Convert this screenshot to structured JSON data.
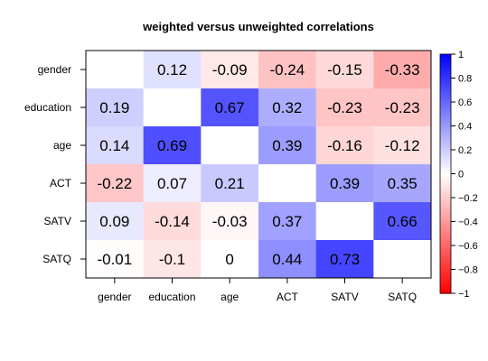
{
  "chart_data": {
    "type": "heatmap",
    "title": "weighted versus unweighted correlations",
    "rows": [
      "gender",
      "education",
      "age",
      "ACT",
      "SATV",
      "SATQ"
    ],
    "columns": [
      "gender",
      "education",
      "age",
      "ACT",
      "SATV",
      "SATQ"
    ],
    "values": [
      [
        null,
        0.12,
        -0.09,
        -0.24,
        -0.15,
        -0.33
      ],
      [
        0.19,
        null,
        0.67,
        0.32,
        -0.23,
        -0.23
      ],
      [
        0.14,
        0.69,
        null,
        0.39,
        -0.16,
        -0.12
      ],
      [
        -0.22,
        0.07,
        0.21,
        null,
        0.39,
        0.35
      ],
      [
        0.09,
        -0.14,
        -0.03,
        0.37,
        null,
        0.66
      ],
      [
        -0.01,
        -0.1,
        0,
        0.44,
        0.73,
        null
      ]
    ],
    "labels": [
      [
        "",
        "0.12",
        "-0.09",
        "-0.24",
        "-0.15",
        "-0.33"
      ],
      [
        "0.19",
        "",
        "0.67",
        "0.32",
        "-0.23",
        "-0.23"
      ],
      [
        "0.14",
        "0.69",
        "",
        "0.39",
        "-0.16",
        "-0.12"
      ],
      [
        "-0.22",
        "0.07",
        "0.21",
        "",
        "0.39",
        "0.35"
      ],
      [
        "0.09",
        "-0.14",
        "-0.03",
        "0.37",
        "",
        "0.66"
      ],
      [
        "-0.01",
        "-0.1",
        "0",
        "0.44",
        "0.73",
        ""
      ]
    ],
    "color_scale": {
      "min": -1,
      "max": 1,
      "low": "#ff0000",
      "mid": "#ffffff",
      "high": "#0000ff"
    },
    "legend": {
      "placement": "right",
      "ticks": [
        1,
        0.8,
        0.6,
        0.4,
        0.2,
        0,
        -0.2,
        -0.4,
        -0.6,
        -0.8,
        -1
      ],
      "tick_labels": [
        "1",
        "0.8",
        "0.6",
        "0.4",
        "0.2",
        "0",
        "−0.2",
        "−0.4",
        "−0.6",
        "−0.8",
        "−1"
      ]
    }
  }
}
